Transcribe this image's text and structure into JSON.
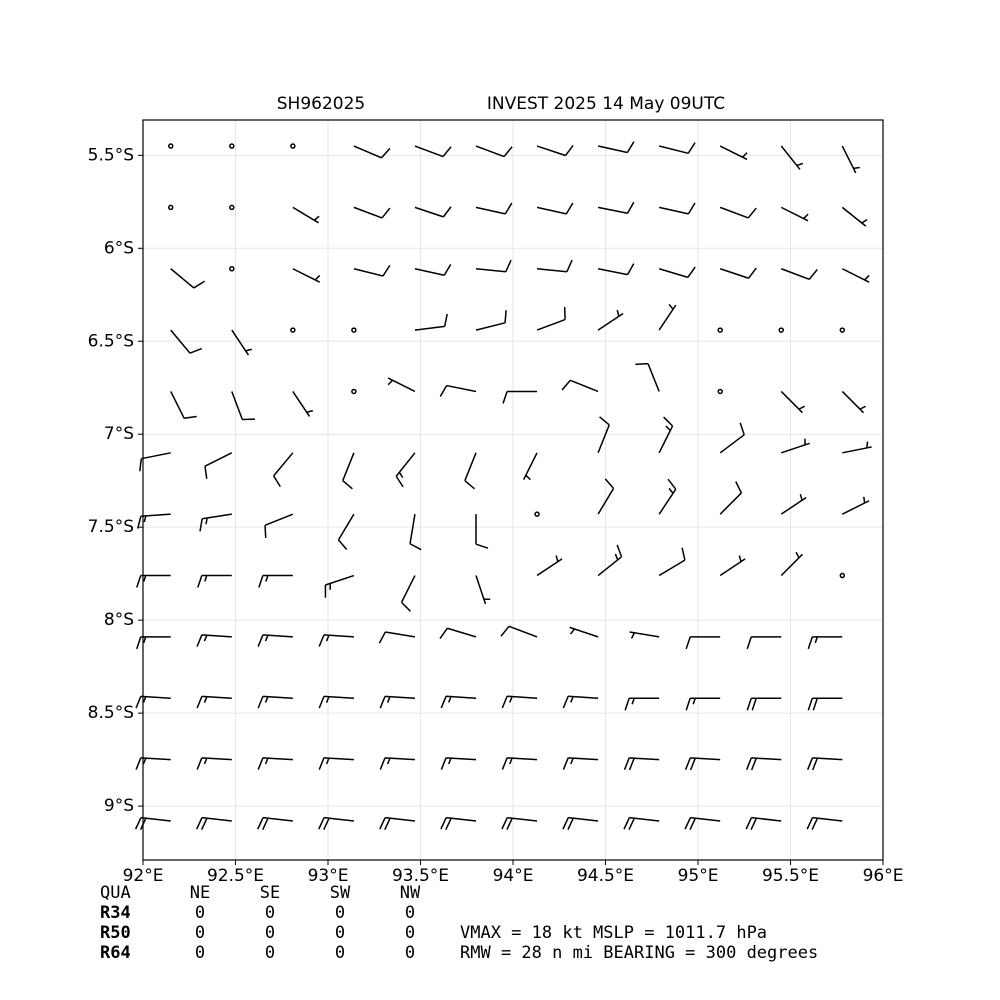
{
  "chart_data": {
    "type": "barbs",
    "title_left": "SH962025",
    "title_right": "INVEST 2025 14 May 09UTC",
    "xlim": [
      92,
      96
    ],
    "ylim": [
      -9.29,
      -5.31
    ],
    "grid": true,
    "color": "#000000",
    "xticks": [
      {
        "value": 92,
        "label": "92°E"
      },
      {
        "value": 92.5,
        "label": "92.5°E"
      },
      {
        "value": 93,
        "label": "93°E"
      },
      {
        "value": 93.5,
        "label": "93.5°E"
      },
      {
        "value": 94,
        "label": "94°E"
      },
      {
        "value": 94.5,
        "label": "94.5°E"
      },
      {
        "value": 95,
        "label": "95°E"
      },
      {
        "value": 95.5,
        "label": "95.5°E"
      },
      {
        "value": 96,
        "label": "96°E"
      }
    ],
    "yticks": [
      {
        "value": -5.5,
        "label": "5.5°S"
      },
      {
        "value": -6,
        "label": "6°S"
      },
      {
        "value": -6.5,
        "label": "6.5°S"
      },
      {
        "value": -7,
        "label": "7°S"
      },
      {
        "value": -7.5,
        "label": "7.5°S"
      },
      {
        "value": -8,
        "label": "8°S"
      },
      {
        "value": -8.5,
        "label": "8.5°S"
      },
      {
        "value": -9,
        "label": "9°S"
      }
    ],
    "lon": [
      92.15,
      92.48,
      92.81,
      93.14,
      93.47,
      93.8,
      94.13,
      94.46,
      94.79,
      95.12,
      95.45,
      95.78
    ],
    "lat": [
      -5.45,
      -5.78,
      -6.11,
      -6.44,
      -6.77,
      -7.1,
      -7.43,
      -7.76,
      -8.09,
      -8.42,
      -8.75,
      -9.08
    ],
    "u": [
      [
        0,
        0,
        0,
        -7,
        -8,
        -8,
        -9,
        -9,
        -8,
        -6,
        -4,
        -3
      ],
      [
        0,
        0,
        -5,
        -8,
        -9,
        -9,
        -9,
        -10,
        -9,
        -8,
        -6,
        -5
      ],
      [
        -6,
        0,
        -6,
        -8,
        -9,
        -10,
        -10,
        -10,
        -10,
        -9,
        -8,
        -6
      ],
      [
        -5,
        -4,
        0,
        0,
        -8,
        -8,
        -8,
        -6,
        -4,
        0,
        0,
        0
      ],
      [
        -4,
        -3,
        -4,
        0,
        6,
        10,
        12,
        10,
        4,
        0,
        -2,
        -3
      ],
      [
        10,
        8,
        5,
        4,
        8,
        4,
        2,
        -4,
        -6,
        -8,
        -6,
        -5
      ],
      [
        14,
        13,
        10,
        6,
        2,
        0,
        -2,
        -6,
        -8,
        -8,
        -6,
        -4
      ],
      [
        15,
        15,
        14,
        12,
        4,
        -2,
        -6,
        -10,
        -10,
        -6,
        -2,
        2
      ],
      [
        15,
        15,
        15,
        15,
        12,
        10,
        8,
        6,
        6,
        8,
        12,
        14
      ],
      [
        16,
        16,
        16,
        16,
        16,
        15,
        15,
        15,
        16,
        17,
        18,
        18
      ],
      [
        17,
        17,
        17,
        17,
        17,
        17,
        17,
        17,
        18,
        18,
        18,
        18
      ],
      [
        18,
        18,
        18,
        18,
        18,
        18,
        18,
        18,
        18,
        18,
        18,
        18
      ]
    ],
    "v": [
      [
        0,
        0,
        0,
        3,
        3,
        3,
        3,
        2,
        2,
        3,
        5,
        6
      ],
      [
        0,
        0,
        3,
        3,
        3,
        2,
        2,
        2,
        2,
        3,
        3,
        4
      ],
      [
        5,
        0,
        3,
        2,
        2,
        1,
        1,
        2,
        3,
        3,
        3,
        3
      ],
      [
        6,
        6,
        0,
        0,
        -1,
        -2,
        -3,
        -4,
        -6,
        0,
        0,
        0
      ],
      [
        8,
        8,
        6,
        0,
        -3,
        -2,
        0,
        -4,
        -10,
        -2,
        2,
        3
      ],
      [
        2,
        4,
        6,
        10,
        10,
        10,
        4,
        -10,
        -12,
        -6,
        -2,
        -1
      ],
      [
        1,
        2,
        4,
        10,
        12,
        8,
        0,
        -10,
        -12,
        -8,
        -4,
        -2
      ],
      [
        0,
        0,
        0,
        4,
        8,
        6,
        -4,
        -8,
        -6,
        -4,
        -2,
        -1
      ],
      [
        0,
        -1,
        -1,
        -1,
        -2,
        -3,
        -3,
        -2,
        -1,
        0,
        0,
        0
      ],
      [
        -1,
        -1,
        -1,
        -1,
        -1,
        -1,
        -1,
        -1,
        0,
        0,
        0,
        0
      ],
      [
        -1,
        -1,
        -1,
        -1,
        -1,
        -1,
        -1,
        -1,
        -1,
        -1,
        -1,
        -1
      ],
      [
        -2,
        -2,
        -2,
        -2,
        -2,
        -2,
        -2,
        -2,
        -2,
        -2,
        -2,
        -2
      ]
    ]
  },
  "summary": {
    "header": [
      "QUA",
      "NE",
      "SE",
      "SW",
      "NW"
    ],
    "rows": [
      [
        "R34",
        0,
        0,
        0,
        0
      ],
      [
        "R50",
        0,
        0,
        0,
        0
      ],
      [
        "R64",
        0,
        0,
        0,
        0
      ]
    ],
    "lines": [
      "VMAX =  18 kt MSLP = 1011.7 hPa",
      "RMW =  28 n mi BEARING = 300 degrees"
    ]
  }
}
